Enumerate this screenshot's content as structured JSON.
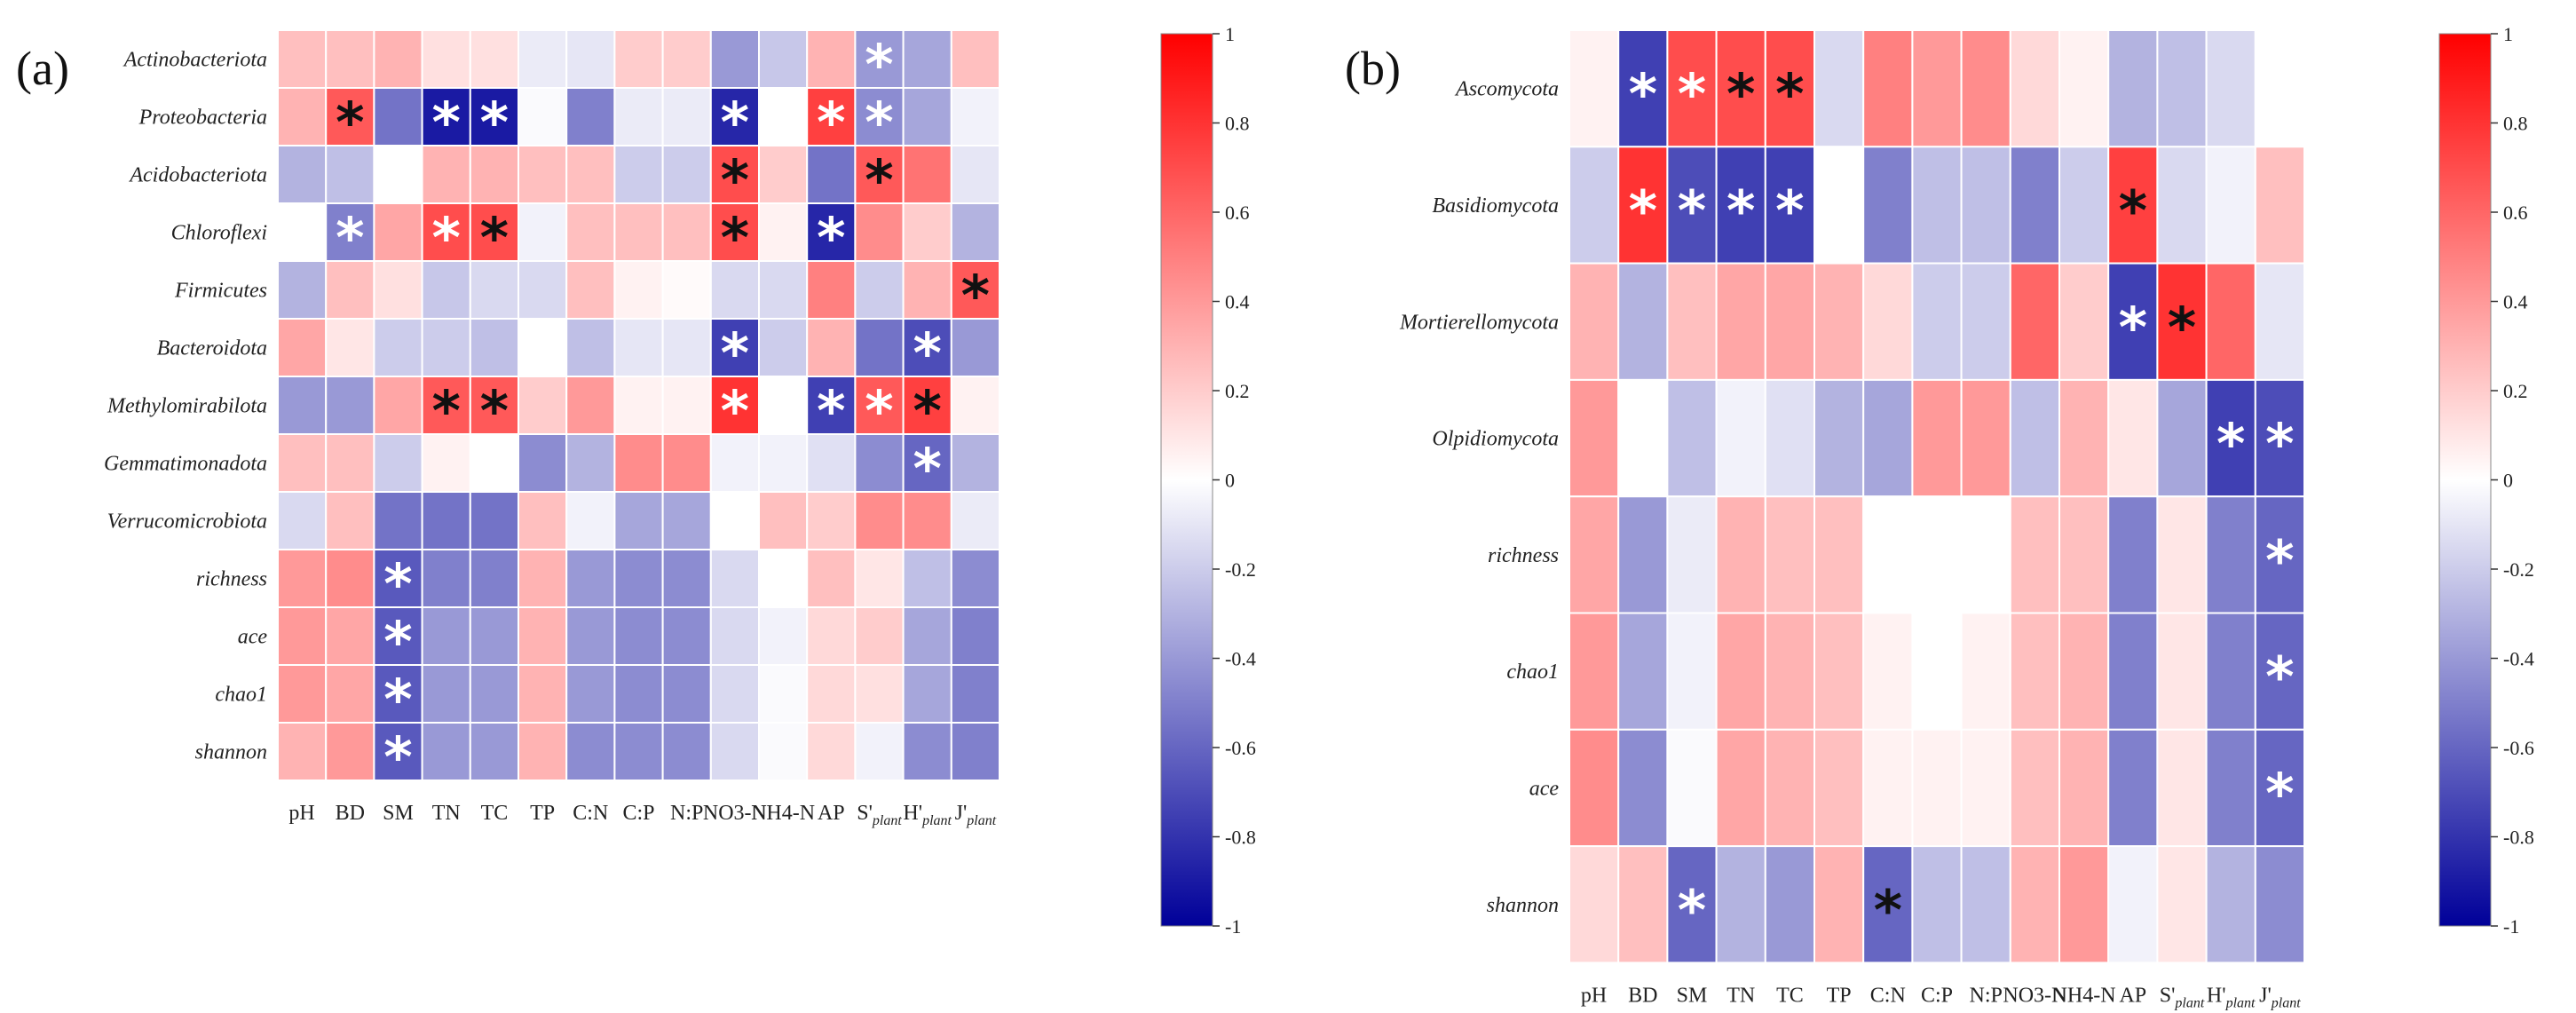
{
  "chart_data": [
    {
      "type": "heatmap",
      "panel_label": "(a)",
      "rows": [
        "Actinobacteriota",
        "Proteobacteria",
        "Acidobacteriota",
        "Chloroflexi",
        "Firmicutes",
        "Bacteroidota",
        "Methylomirabilota",
        "Gemmatimonadota",
        "Verrucomicrobiota",
        "richness",
        "ace",
        "chao1",
        "shannon"
      ],
      "columns": [
        "pH",
        "BD",
        "SM",
        "TN",
        "TC",
        "TP",
        "C:N",
        "C:P",
        "N:P",
        "NO3⁻-N",
        "NH4⁺-N",
        "AP",
        "S'plant",
        "H'plant",
        "J'plant"
      ],
      "values": [
        [
          0.25,
          0.25,
          0.3,
          0.12,
          0.12,
          -0.08,
          -0.1,
          0.2,
          0.2,
          -0.4,
          -0.22,
          0.3,
          -0.4,
          -0.35,
          0.25
        ],
        [
          0.3,
          0.65,
          -0.55,
          -0.9,
          -0.9,
          -0.02,
          -0.5,
          -0.08,
          -0.08,
          -0.85,
          0.0,
          0.75,
          -0.45,
          -0.35,
          -0.05
        ],
        [
          -0.3,
          -0.25,
          0.0,
          0.3,
          0.3,
          0.25,
          0.25,
          -0.2,
          -0.2,
          0.7,
          0.2,
          -0.55,
          0.65,
          0.55,
          -0.1
        ],
        [
          0.0,
          -0.5,
          0.35,
          0.7,
          0.7,
          -0.05,
          0.25,
          0.25,
          0.25,
          0.7,
          0.05,
          -0.85,
          0.45,
          0.2,
          -0.3
        ],
        [
          -0.3,
          0.25,
          0.12,
          -0.22,
          -0.15,
          -0.15,
          0.25,
          0.05,
          0.02,
          -0.15,
          -0.15,
          0.5,
          -0.2,
          0.3,
          0.65
        ],
        [
          0.35,
          0.1,
          -0.2,
          -0.2,
          -0.25,
          0.0,
          -0.25,
          -0.1,
          -0.1,
          -0.75,
          -0.2,
          0.3,
          -0.55,
          -0.7,
          -0.4
        ],
        [
          -0.4,
          -0.4,
          0.35,
          0.65,
          0.65,
          0.2,
          0.4,
          0.05,
          0.05,
          0.8,
          0.0,
          -0.75,
          0.65,
          0.75,
          0.05
        ],
        [
          0.25,
          0.25,
          -0.2,
          0.05,
          0.0,
          -0.45,
          -0.3,
          0.45,
          0.45,
          -0.05,
          -0.05,
          -0.12,
          -0.45,
          -0.6,
          -0.3
        ],
        [
          -0.15,
          0.25,
          -0.55,
          -0.55,
          -0.55,
          0.25,
          -0.05,
          -0.35,
          -0.35,
          0.0,
          0.25,
          0.2,
          0.45,
          0.45,
          -0.08
        ],
        [
          0.4,
          0.45,
          -0.65,
          -0.5,
          -0.5,
          0.3,
          -0.4,
          -0.45,
          -0.45,
          -0.15,
          0.0,
          0.25,
          0.1,
          -0.25,
          -0.45
        ],
        [
          0.4,
          0.35,
          -0.65,
          -0.4,
          -0.4,
          0.3,
          -0.4,
          -0.45,
          -0.45,
          -0.15,
          -0.05,
          0.15,
          0.2,
          -0.35,
          -0.5
        ],
        [
          0.4,
          0.35,
          -0.65,
          -0.4,
          -0.4,
          0.3,
          -0.4,
          -0.45,
          -0.45,
          -0.15,
          -0.02,
          0.15,
          0.12,
          -0.35,
          -0.5
        ],
        [
          0.3,
          0.4,
          -0.65,
          -0.4,
          -0.4,
          0.3,
          -0.45,
          -0.45,
          -0.45,
          -0.15,
          -0.02,
          0.15,
          -0.05,
          -0.45,
          -0.5
        ]
      ],
      "significance": [
        [
          "",
          "",
          "",
          "",
          "",
          "",
          "",
          "",
          "",
          "",
          "",
          "",
          "w",
          "",
          ""
        ],
        [
          "",
          "b",
          "",
          "w",
          "w",
          "",
          "",
          "",
          "",
          "w",
          "",
          "w",
          "w",
          "",
          ""
        ],
        [
          "",
          "",
          "",
          "",
          "",
          "",
          "",
          "",
          "",
          "b",
          "",
          "",
          "b",
          "",
          ""
        ],
        [
          "",
          "w",
          "",
          "w",
          "b",
          "",
          "",
          "",
          "",
          "b",
          "",
          "w",
          "",
          "",
          ""
        ],
        [
          "",
          "",
          "",
          "",
          "",
          "",
          "",
          "",
          "",
          "",
          "",
          "",
          "",
          "",
          "b"
        ],
        [
          "",
          "",
          "",
          "",
          "",
          "",
          "",
          "",
          "",
          "w",
          "",
          "",
          "",
          "w",
          ""
        ],
        [
          "",
          "",
          "",
          "b",
          "b",
          "",
          "",
          "",
          "",
          "w",
          "",
          "w",
          "w",
          "b",
          ""
        ],
        [
          "",
          "",
          "",
          "",
          "",
          "",
          "",
          "",
          "",
          "",
          "",
          "",
          "",
          "w",
          ""
        ],
        [
          "",
          "",
          "",
          "",
          "",
          "",
          "",
          "",
          "",
          "",
          "",
          "",
          "",
          "",
          ""
        ],
        [
          "",
          "",
          "w",
          "",
          "",
          "",
          "",
          "",
          "",
          "",
          "",
          "",
          "",
          "",
          ""
        ],
        [
          "",
          "",
          "w",
          "",
          "",
          "",
          "",
          "",
          "",
          "",
          "",
          "",
          "",
          "",
          ""
        ],
        [
          "",
          "",
          "w",
          "",
          "",
          "",
          "",
          "",
          "",
          "",
          "",
          "",
          "",
          "",
          ""
        ],
        [
          "",
          "",
          "w",
          "",
          "",
          "",
          "",
          "",
          "",
          "",
          "",
          "",
          "",
          "",
          ""
        ]
      ],
      "colorbar": {
        "min": -1,
        "max": 1,
        "ticks": [
          "1",
          "0.8",
          "0.6",
          "0.4",
          "0.2",
          "0",
          "-0.2",
          "-0.4",
          "-0.6",
          "-0.8",
          "-1"
        ]
      }
    },
    {
      "type": "heatmap",
      "panel_label": "(b)",
      "rows": [
        "Ascomycota",
        "Basidiomycota",
        "Mortierellomycota",
        "Olpidiomycota",
        "richness",
        "chao1",
        "ace",
        "shannon"
      ],
      "columns": [
        "pH",
        "BD",
        "SM",
        "TN",
        "TC",
        "TP",
        "C:N",
        "C:P",
        "N:P",
        "NO3⁻-N",
        "NH4⁺-N",
        "AP",
        "S'plant",
        "H'plant",
        "J'plant"
      ],
      "values": [
        [
          0.05,
          -0.75,
          0.7,
          0.7,
          0.7,
          -0.15,
          0.5,
          0.4,
          0.45,
          0.15,
          0.05,
          -0.3,
          -0.25,
          -0.15,
          0.0
        ],
        [
          -0.2,
          0.8,
          -0.7,
          -0.75,
          -0.75,
          0.0,
          -0.5,
          -0.25,
          -0.25,
          -0.5,
          -0.2,
          0.75,
          -0.15,
          -0.05,
          0.25
        ],
        [
          0.3,
          -0.3,
          0.25,
          0.35,
          0.35,
          0.3,
          0.15,
          -0.2,
          -0.2,
          0.6,
          0.2,
          -0.75,
          0.8,
          0.6,
          -0.1
        ],
        [
          0.4,
          0.0,
          -0.25,
          -0.05,
          -0.12,
          -0.3,
          -0.35,
          0.4,
          0.4,
          -0.25,
          0.3,
          0.1,
          -0.35,
          -0.75,
          -0.7
        ],
        [
          0.35,
          -0.4,
          -0.08,
          0.3,
          0.25,
          0.25,
          0.0,
          0.0,
          0.0,
          0.25,
          0.25,
          -0.5,
          0.1,
          -0.5,
          -0.6
        ],
        [
          0.4,
          -0.35,
          -0.05,
          0.35,
          0.3,
          0.25,
          0.05,
          0.0,
          0.05,
          0.25,
          0.3,
          -0.5,
          0.1,
          -0.5,
          -0.6
        ],
        [
          0.45,
          -0.45,
          -0.02,
          0.35,
          0.3,
          0.25,
          0.05,
          0.05,
          0.05,
          0.25,
          0.3,
          -0.5,
          0.1,
          -0.5,
          -0.6
        ],
        [
          0.15,
          0.25,
          -0.6,
          -0.3,
          -0.4,
          0.3,
          -0.6,
          -0.25,
          -0.25,
          0.3,
          0.4,
          -0.05,
          0.1,
          -0.3,
          -0.45
        ]
      ],
      "significance": [
        [
          "",
          "w",
          "w",
          "b",
          "b",
          "",
          "",
          "",
          "",
          "",
          "",
          "",
          "",
          "",
          ""
        ],
        [
          "",
          "w",
          "w",
          "w",
          "w",
          "",
          "",
          "",
          "",
          "",
          "",
          "b",
          "",
          "",
          ""
        ],
        [
          "",
          "",
          "",
          "",
          "",
          "",
          "",
          "",
          "",
          "",
          "",
          "w",
          "b",
          "",
          ""
        ],
        [
          "",
          "",
          "",
          "",
          "",
          "",
          "",
          "",
          "",
          "",
          "",
          "",
          "",
          "w",
          "w"
        ],
        [
          "",
          "",
          "",
          "",
          "",
          "",
          "",
          "",
          "",
          "",
          "",
          "",
          "",
          "",
          "w"
        ],
        [
          "",
          "",
          "",
          "",
          "",
          "",
          "",
          "",
          "",
          "",
          "",
          "",
          "",
          "",
          "w"
        ],
        [
          "",
          "",
          "",
          "",
          "",
          "",
          "",
          "",
          "",
          "",
          "",
          "",
          "",
          "",
          "w"
        ],
        [
          "",
          "",
          "w",
          "",
          "",
          "",
          "b",
          "",
          "",
          "",
          "",
          "",
          "",
          "",
          ""
        ]
      ],
      "colorbar": {
        "min": -1,
        "max": 1,
        "ticks": [
          "1",
          "0.8",
          "0.6",
          "0.4",
          "0.2",
          "0",
          "-0.2",
          "-0.4",
          "-0.6",
          "-0.8",
          "-1"
        ]
      }
    }
  ],
  "column_label_parts": [
    {
      "main": "pH",
      "sup": "",
      "sub": ""
    },
    {
      "main": "BD",
      "sup": "",
      "sub": ""
    },
    {
      "main": "SM",
      "sup": "",
      "sub": ""
    },
    {
      "main": "TN",
      "sup": "",
      "sub": ""
    },
    {
      "main": "TC",
      "sup": "",
      "sub": ""
    },
    {
      "main": "TP",
      "sup": "",
      "sub": ""
    },
    {
      "main": "C:N",
      "sup": "",
      "sub": ""
    },
    {
      "main": "C:P",
      "sup": "",
      "sub": ""
    },
    {
      "main": "N:P",
      "sup": "",
      "sub": ""
    },
    {
      "main": "NO3-N",
      "sup": "",
      "sub": ""
    },
    {
      "main": "NH4-N",
      "sup": "",
      "sub": ""
    },
    {
      "main": "AP",
      "sup": "",
      "sub": ""
    },
    {
      "main": "S'",
      "sup": "",
      "sub": "plant"
    },
    {
      "main": "H'",
      "sup": "",
      "sub": "plant"
    },
    {
      "main": "J'",
      "sup": "",
      "sub": "plant"
    }
  ],
  "star_glyph": "*",
  "colors": {
    "high": "#ff0000",
    "mid": "#ffffff",
    "low": "#000099",
    "black_star": "#111111",
    "white_star": "#ffffff",
    "grid": "#ffffff"
  }
}
